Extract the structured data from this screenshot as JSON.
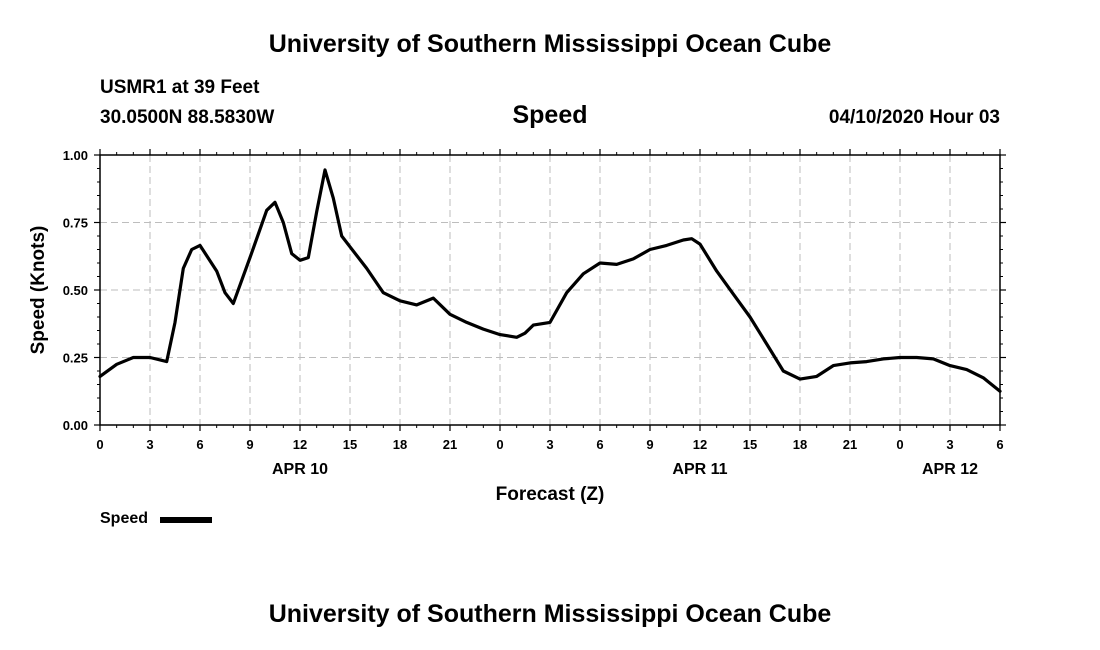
{
  "header": {
    "title": "University of Southern Mississippi Ocean Cube",
    "station": "USMR1 at 39 Feet",
    "coords": "30.0500N 88.5830W",
    "variable": "Speed",
    "datetime": "04/10/2020 Hour 03"
  },
  "footer": {
    "title": "University of Southern Mississippi Ocean Cube"
  },
  "legend": {
    "label": "Speed"
  },
  "chart_data": {
    "type": "line",
    "xlabel": "Forecast (Z)",
    "ylabel": "Speed (Knots)",
    "xlim": [
      0,
      54
    ],
    "ylim": [
      0,
      1
    ],
    "yticks": [
      "0.00",
      "0.25",
      "0.50",
      "0.75",
      "1.00"
    ],
    "xticks": [
      "0",
      "3",
      "6",
      "9",
      "12",
      "15",
      "18",
      "21",
      "0",
      "3",
      "6",
      "9",
      "12",
      "15",
      "18",
      "21",
      "0",
      "3",
      "6"
    ],
    "date_labels": [
      {
        "label": "APR 10",
        "at": 12
      },
      {
        "label": "APR 11",
        "at": 36
      },
      {
        "label": "APR 12",
        "at": 51
      }
    ],
    "grid": true,
    "line_color": "#000000",
    "series": [
      {
        "name": "Speed",
        "x": [
          0,
          1,
          2,
          3,
          4,
          4.5,
          5,
          5.5,
          6,
          7,
          7.5,
          8,
          9,
          10,
          10.5,
          11,
          11.5,
          12,
          12.5,
          13,
          13.5,
          14,
          14.5,
          15,
          16,
          17,
          18,
          19,
          20,
          21,
          22,
          23,
          24,
          25,
          25.5,
          26,
          27,
          28,
          29,
          30,
          31,
          32,
          33,
          34,
          35,
          35.5,
          36,
          37,
          38,
          39,
          40,
          41,
          42,
          43,
          43.5,
          44,
          45,
          46,
          47,
          48,
          49,
          50,
          51,
          52,
          53,
          54
        ],
        "y": [
          0.18,
          0.225,
          0.25,
          0.25,
          0.235,
          0.38,
          0.58,
          0.65,
          0.665,
          0.57,
          0.49,
          0.45,
          0.62,
          0.795,
          0.825,
          0.75,
          0.635,
          0.61,
          0.62,
          0.79,
          0.945,
          0.84,
          0.7,
          0.66,
          0.58,
          0.49,
          0.46,
          0.445,
          0.47,
          0.41,
          0.38,
          0.355,
          0.335,
          0.325,
          0.34,
          0.37,
          0.38,
          0.49,
          0.56,
          0.6,
          0.595,
          0.615,
          0.65,
          0.665,
          0.685,
          0.69,
          0.67,
          0.57,
          0.485,
          0.4,
          0.3,
          0.2,
          0.17,
          0.18,
          0.2,
          0.22,
          0.23,
          0.235,
          0.245,
          0.25,
          0.25,
          0.245,
          0.22,
          0.205,
          0.175,
          0.125
        ]
      }
    ]
  }
}
